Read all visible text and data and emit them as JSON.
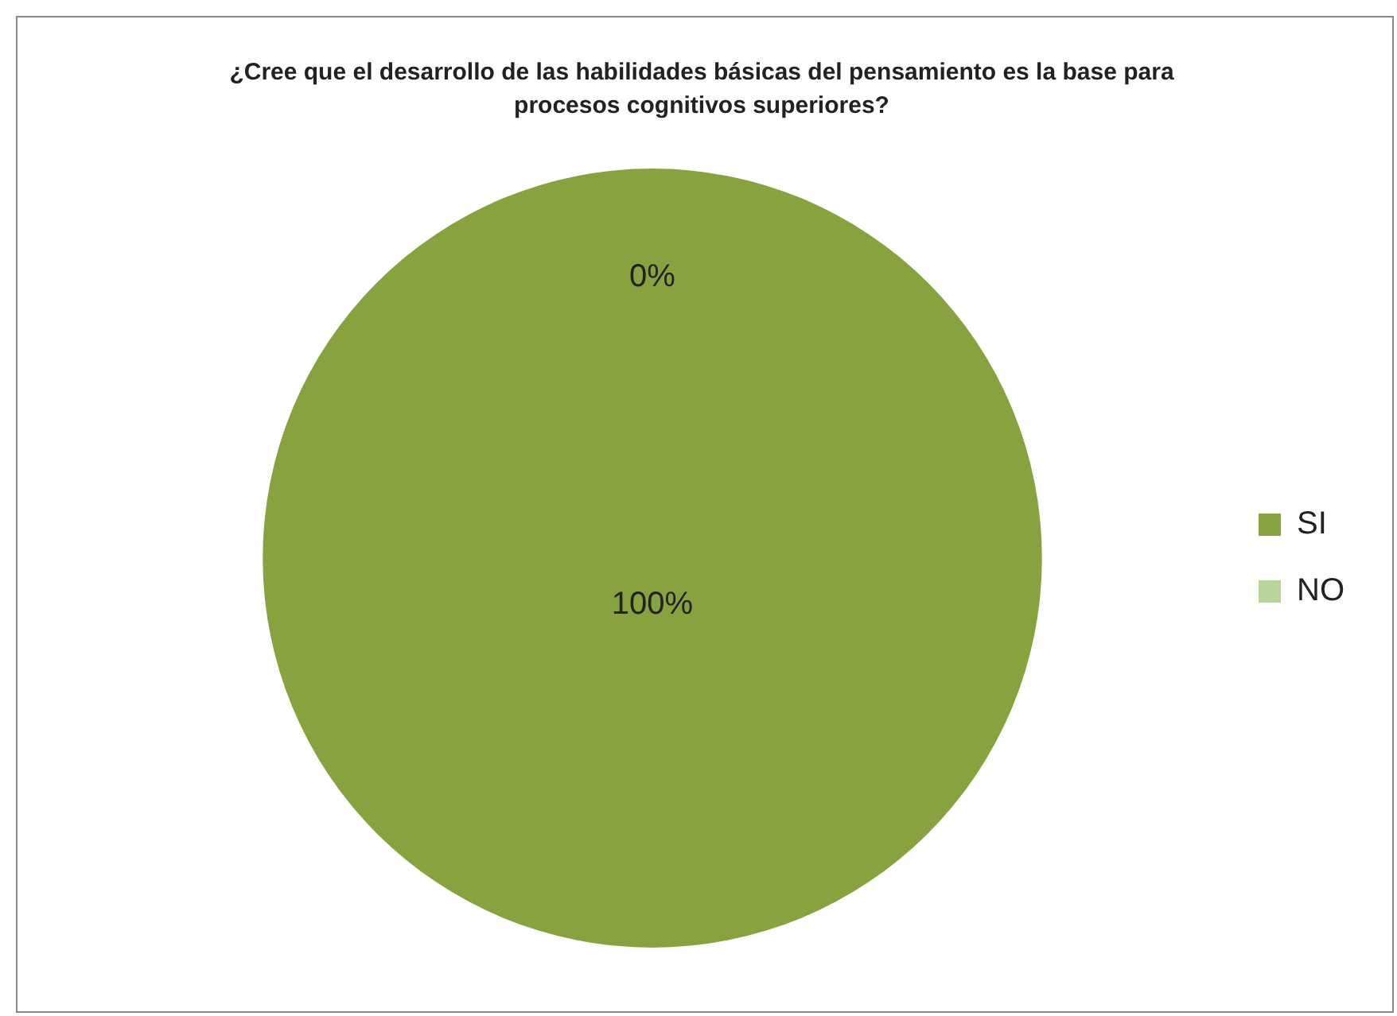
{
  "chart_data": {
    "type": "pie",
    "title": "¿Cree que el desarrollo de las habilidades básicas del pensamiento es la base para procesos cognitivos superiores?",
    "categories": [
      "SI",
      "NO"
    ],
    "values": [
      100,
      0
    ],
    "colors": [
      "#86a33f",
      "#b8d49a"
    ],
    "value_labels": [
      "100%",
      "0%"
    ],
    "legend": "right"
  }
}
